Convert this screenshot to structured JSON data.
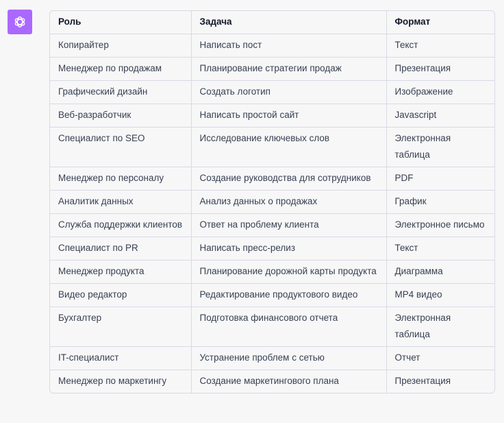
{
  "assistant": {
    "avatar_icon": "openai-logo-icon",
    "avatar_color": "#ab68ff"
  },
  "table": {
    "headers": [
      "Роль",
      "Задача",
      "Формат"
    ],
    "rows": [
      [
        "Копирайтер",
        "Написать пост",
        "Текст"
      ],
      [
        "Менеджер по продажам",
        "Планирование стратегии продаж",
        "Презентация"
      ],
      [
        "Графический дизайн",
        "Создать логотип",
        "Изображение"
      ],
      [
        "Веб-разработчик",
        "Написать простой сайт",
        "Javascript"
      ],
      [
        "Специалист по SEO",
        "Исследование ключевых слов",
        "Электронная таблица"
      ],
      [
        "Менеджер по персоналу",
        "Создание руководства для сотрудников",
        "PDF"
      ],
      [
        "Аналитик данных",
        "Анализ данных о продажах",
        "График"
      ],
      [
        "Служба поддержки клиентов",
        "Ответ на проблему клиента",
        "Электронное письмо"
      ],
      [
        "Специалист по PR",
        "Написать пресс-релиз",
        "Текст"
      ],
      [
        "Менеджер продукта",
        "Планирование дорожной карты продукта",
        "Диаграмма"
      ],
      [
        "Видео редактор",
        "Редактирование продуктового видео",
        "MP4 видео"
      ],
      [
        "Бухгалтер",
        "Подготовка финансового отчета",
        "Электронная таблица"
      ],
      [
        "IT-специалист",
        "Устранение проблем с сетью",
        "Отчет"
      ],
      [
        "Менеджер по маркетингу",
        "Создание маркетингового плана",
        "Презентация"
      ]
    ]
  }
}
